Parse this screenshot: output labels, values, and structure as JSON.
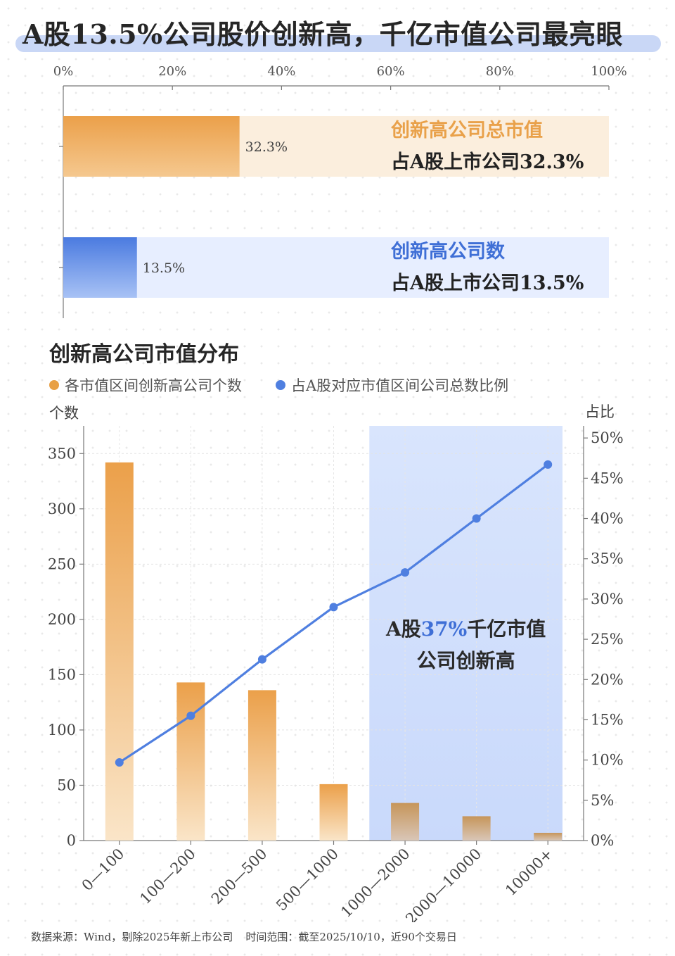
{
  "title": "A股13.5%公司股价创新高，千亿市值公司最亮眼",
  "colors": {
    "orange": "#e8a045",
    "orange_light": "#fbeedd",
    "blue": "#4f7fe0",
    "blue_light": "#e7eeff",
    "text_blue": "#3f6fd6",
    "text_orange": "#e9a14a"
  },
  "chart_data": [
    {
      "type": "bar",
      "orientation": "horizontal",
      "x_ticks": [
        "0%",
        "20%",
        "40%",
        "60%",
        "80%",
        "100%"
      ],
      "xlim": [
        0,
        100
      ],
      "series": [
        {
          "value": 32.3,
          "value_label": "32.3%",
          "title": "创新高公司总市值",
          "subtitle": "占A股上市公司32.3%",
          "color": "orange"
        },
        {
          "value": 13.5,
          "value_label": "13.5%",
          "title": "创新高公司数",
          "subtitle": "占A股上市公司13.5%",
          "color": "blue"
        }
      ]
    },
    {
      "type": "bar",
      "title": "创新高公司市值分布",
      "legend": [
        "各市值区间创新高公司个数",
        "占A股对应市值区间公司总数比例"
      ],
      "y_left_label": "个数",
      "y_right_label": "占比",
      "categories": [
        "0—100",
        "100—200",
        "200—500",
        "500—1000",
        "1000—2000",
        "2000—10000",
        "10000+"
      ],
      "bar_values": [
        342,
        143,
        136,
        51,
        34,
        22,
        7
      ],
      "line_values": [
        9.7,
        15.5,
        22.5,
        29.0,
        33.3,
        40.0,
        46.7
      ],
      "y_left_ticks": [
        "0",
        "50",
        "100",
        "150",
        "200",
        "250",
        "300",
        "350"
      ],
      "ylim_left": [
        0,
        375
      ],
      "y_right_ticks": [
        "0%",
        "5%",
        "10%",
        "15%",
        "20%",
        "25%",
        "30%",
        "35%",
        "40%",
        "45%",
        "50%"
      ],
      "ylim_right": [
        0,
        51.5
      ],
      "highlight_categories": [
        "1000—2000",
        "2000—10000",
        "10000+"
      ],
      "annotation": {
        "prefix": "A股",
        "highlight": "37%",
        "suffix": "千亿市值",
        "line2": "公司创新高"
      }
    }
  ],
  "footer": {
    "source": "数据来源：Wind，剔除2025年新上市公司",
    "range": "时间范围：截至2025/10/10，近90个交易日"
  }
}
